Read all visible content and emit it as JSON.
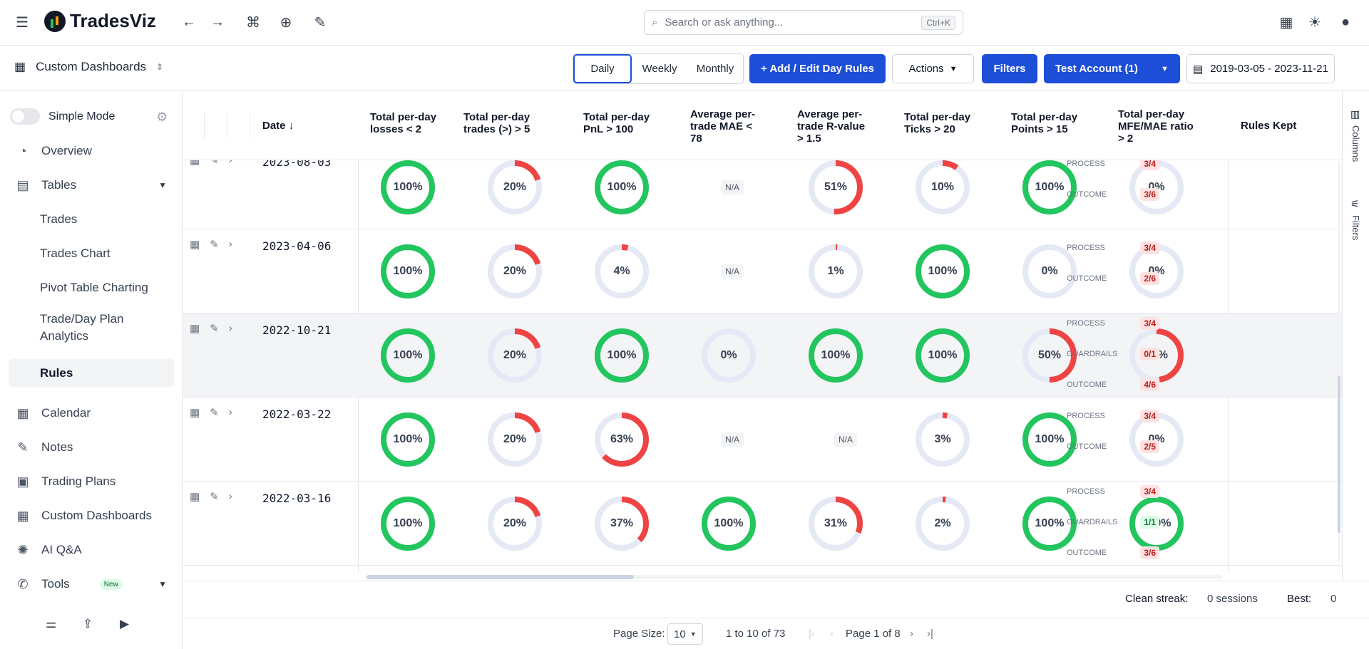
{
  "app": {
    "name": "TradesViz"
  },
  "search": {
    "placeholder": "Search or ask anything...",
    "shortcut": "Ctrl+K"
  },
  "subbar": {
    "dashboard_label": "Custom Dashboards",
    "periods": [
      "Daily",
      "Weekly",
      "Monthly"
    ],
    "active_period": "Daily",
    "add_rules": "+  Add / Edit Day Rules",
    "actions": "Actions",
    "filters": "Filters",
    "account": "Test Account (1)",
    "date_range": "2019-03-05 - 2023-11-21"
  },
  "sidebar": {
    "simple_mode": "Simple Mode",
    "items": [
      {
        "label": "Overview"
      },
      {
        "label": "Tables"
      },
      {
        "label": "Trades"
      },
      {
        "label": "Trades Chart"
      },
      {
        "label": "Pivot Table Charting"
      },
      {
        "label": "Trade/Day Plan Analytics"
      },
      {
        "label": "Rules"
      },
      {
        "label": "Calendar"
      },
      {
        "label": "Notes"
      },
      {
        "label": "Trading Plans"
      },
      {
        "label": "Custom Dashboards"
      },
      {
        "label": "AI Q&A"
      },
      {
        "label": "Tools"
      }
    ],
    "tools_badge": "New"
  },
  "table": {
    "columns": [
      "Date",
      "Total per-day losses < 2",
      "Total per-day trades (>) > 5",
      "Total per-day PnL > 100",
      "Average per-trade MAE < 78",
      "Average per-trade R-value > 1.5",
      "Total per-day Ticks > 20",
      "Total per-day Points > 15",
      "Total per-day MFE/MAE ratio > 2",
      "Rules Kept"
    ],
    "rows": [
      {
        "date": "2023-08-03",
        "values": [
          100,
          20,
          100,
          null,
          51,
          10,
          100,
          0
        ],
        "kept": [
          {
            "k": "PROCESS",
            "v": "3/4",
            "c": "red"
          },
          {
            "k": "OUTCOME",
            "v": "3/6",
            "c": "red"
          }
        ]
      },
      {
        "date": "2023-04-06",
        "values": [
          100,
          20,
          4,
          null,
          1,
          100,
          0,
          0
        ],
        "kept": [
          {
            "k": "PROCESS",
            "v": "3/4",
            "c": "red"
          },
          {
            "k": "OUTCOME",
            "v": "2/6",
            "c": "red"
          }
        ]
      },
      {
        "date": "2022-10-21",
        "values": [
          100,
          20,
          100,
          0,
          100,
          100,
          50,
          48
        ],
        "kept": [
          {
            "k": "PROCESS",
            "v": "3/4",
            "c": "red"
          },
          {
            "k": "GUARDRAILS",
            "v": "0/1",
            "c": "red"
          },
          {
            "k": "OUTCOME",
            "v": "4/6",
            "c": "red"
          }
        ]
      },
      {
        "date": "2022-03-22",
        "values": [
          100,
          20,
          63,
          null,
          null,
          3,
          100,
          0
        ],
        "kept": [
          {
            "k": "PROCESS",
            "v": "3/4",
            "c": "red"
          },
          {
            "k": "OUTCOME",
            "v": "2/5",
            "c": "red"
          }
        ]
      },
      {
        "date": "2022-03-16",
        "values": [
          100,
          20,
          37,
          100,
          31,
          2,
          100,
          100
        ],
        "kept": [
          {
            "k": "PROCESS",
            "v": "3/4",
            "c": "red"
          },
          {
            "k": "GUARDRAILS",
            "v": "1/1",
            "c": "green"
          },
          {
            "k": "OUTCOME",
            "v": "3/6",
            "c": "red"
          }
        ]
      }
    ],
    "na_label": "N/A"
  },
  "rail": {
    "columns": "Columns",
    "filters": "Filters"
  },
  "streak": {
    "label": "Clean streak:",
    "value": "0 sessions",
    "best_label": "Best:",
    "best_value": "0"
  },
  "pagination": {
    "page_size_label": "Page Size:",
    "page_size": "10",
    "range": "1 to 10 of 73",
    "page": "Page 1 of 8"
  },
  "colors": {
    "green": "#22c55e",
    "red": "#ef4444",
    "track": "#e5e9f5",
    "primary": "#1d4ed8"
  }
}
